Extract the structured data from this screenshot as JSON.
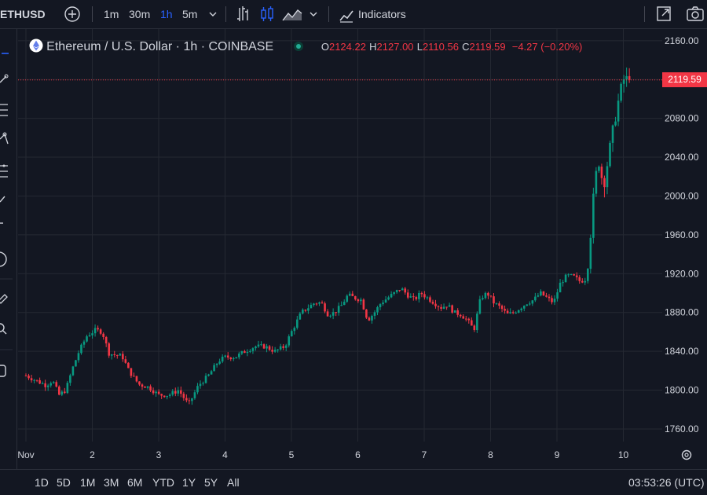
{
  "toolbar": {
    "symbol": "ETHUSD",
    "intervals": [
      "1m",
      "30m",
      "1h",
      "5m"
    ],
    "active_interval": "1h",
    "indicators_label": "Indicators",
    "icons": [
      "add-symbol-icon",
      "chevron-down-icon",
      "bar-style-icon",
      "candle-style-icon",
      "area-style-icon",
      "chevron-down-icon",
      "indicators-icon",
      "fullscreen-icon",
      "camera-icon"
    ]
  },
  "legend": {
    "title": "Ethereum / U.S. Dollar · 1h · COINBASE",
    "open_label": "O",
    "open": "2124.22",
    "high_label": "H",
    "high": "2127.00",
    "low_label": "L",
    "low": "2110.56",
    "close_label": "C",
    "close": "2119.59",
    "change": "−4.27 (−0.20%)"
  },
  "price_tag": "2119.59",
  "colors": {
    "up": "#089981",
    "down": "#f23645",
    "grid": "#242832",
    "background": "#131722",
    "text": "#d1d4dc",
    "accent": "#2962ff"
  },
  "bottom": {
    "ranges": [
      "1D",
      "5D",
      "1M",
      "3M",
      "6M",
      "YTD",
      "1Y",
      "5Y",
      "All"
    ],
    "clock": "03:53:26 (UTC)"
  },
  "chart_data": {
    "type": "candlestick",
    "title": "",
    "y_ticks": [
      "2160.00",
      "2120.00",
      "2080.00",
      "2040.00",
      "2000.00",
      "1960.00",
      "1920.00",
      "1880.00",
      "1840.00",
      "1800.00",
      "1760.00"
    ],
    "ylim": [
      1747,
      2172
    ],
    "x_ticks": [
      "Nov",
      "2",
      "3",
      "4",
      "5",
      "6",
      "7",
      "8",
      "9",
      "10"
    ],
    "last_price": 2119.59,
    "close_path": [
      [
        1.0,
        1815
      ],
      [
        1.15,
        1810
      ],
      [
        1.3,
        1805
      ],
      [
        1.4,
        1810
      ],
      [
        1.5,
        1795
      ],
      [
        1.6,
        1800
      ],
      [
        1.7,
        1822
      ],
      [
        1.8,
        1840
      ],
      [
        1.92,
        1856
      ],
      [
        2.05,
        1862
      ],
      [
        2.15,
        1860
      ],
      [
        2.25,
        1838
      ],
      [
        2.35,
        1836
      ],
      [
        2.45,
        1835
      ],
      [
        2.55,
        1820
      ],
      [
        2.7,
        1806
      ],
      [
        2.85,
        1803
      ],
      [
        3.0,
        1795
      ],
      [
        3.15,
        1795
      ],
      [
        3.3,
        1800
      ],
      [
        3.45,
        1785
      ],
      [
        3.6,
        1805
      ],
      [
        3.75,
        1815
      ],
      [
        3.9,
        1830
      ],
      [
        4.0,
        1834
      ],
      [
        4.15,
        1834
      ],
      [
        4.3,
        1840
      ],
      [
        4.45,
        1845
      ],
      [
        4.6,
        1845
      ],
      [
        4.75,
        1840
      ],
      [
        4.9,
        1845
      ],
      [
        5.0,
        1860
      ],
      [
        5.15,
        1880
      ],
      [
        5.25,
        1885
      ],
      [
        5.35,
        1890
      ],
      [
        5.45,
        1890
      ],
      [
        5.55,
        1878
      ],
      [
        5.65,
        1880
      ],
      [
        5.75,
        1887
      ],
      [
        5.85,
        1898
      ],
      [
        5.95,
        1895
      ],
      [
        6.05,
        1893
      ],
      [
        6.15,
        1872
      ],
      [
        6.25,
        1880
      ],
      [
        6.35,
        1890
      ],
      [
        6.45,
        1895
      ],
      [
        6.55,
        1900
      ],
      [
        6.65,
        1905
      ],
      [
        6.75,
        1898
      ],
      [
        6.85,
        1893
      ],
      [
        6.95,
        1900
      ],
      [
        7.05,
        1895
      ],
      [
        7.15,
        1890
      ],
      [
        7.25,
        1885
      ],
      [
        7.35,
        1888
      ],
      [
        7.45,
        1880
      ],
      [
        7.55,
        1878
      ],
      [
        7.65,
        1872
      ],
      [
        7.75,
        1862
      ],
      [
        7.85,
        1895
      ],
      [
        7.95,
        1900
      ],
      [
        8.05,
        1890
      ],
      [
        8.15,
        1885
      ],
      [
        8.25,
        1878
      ],
      [
        8.35,
        1880
      ],
      [
        8.45,
        1885
      ],
      [
        8.55,
        1890
      ],
      [
        8.65,
        1893
      ],
      [
        8.75,
        1900
      ],
      [
        8.85,
        1895
      ],
      [
        8.95,
        1890
      ],
      [
        9.05,
        1910
      ],
      [
        9.15,
        1918
      ],
      [
        9.25,
        1917
      ],
      [
        9.35,
        1912
      ],
      [
        9.45,
        1915
      ],
      [
        9.55,
        1998
      ],
      [
        9.62,
        2040
      ],
      [
        9.7,
        2010
      ],
      [
        9.8,
        2050
      ],
      [
        9.9,
        2090
      ],
      [
        10.0,
        2120
      ],
      [
        10.1,
        2119.59
      ]
    ]
  }
}
